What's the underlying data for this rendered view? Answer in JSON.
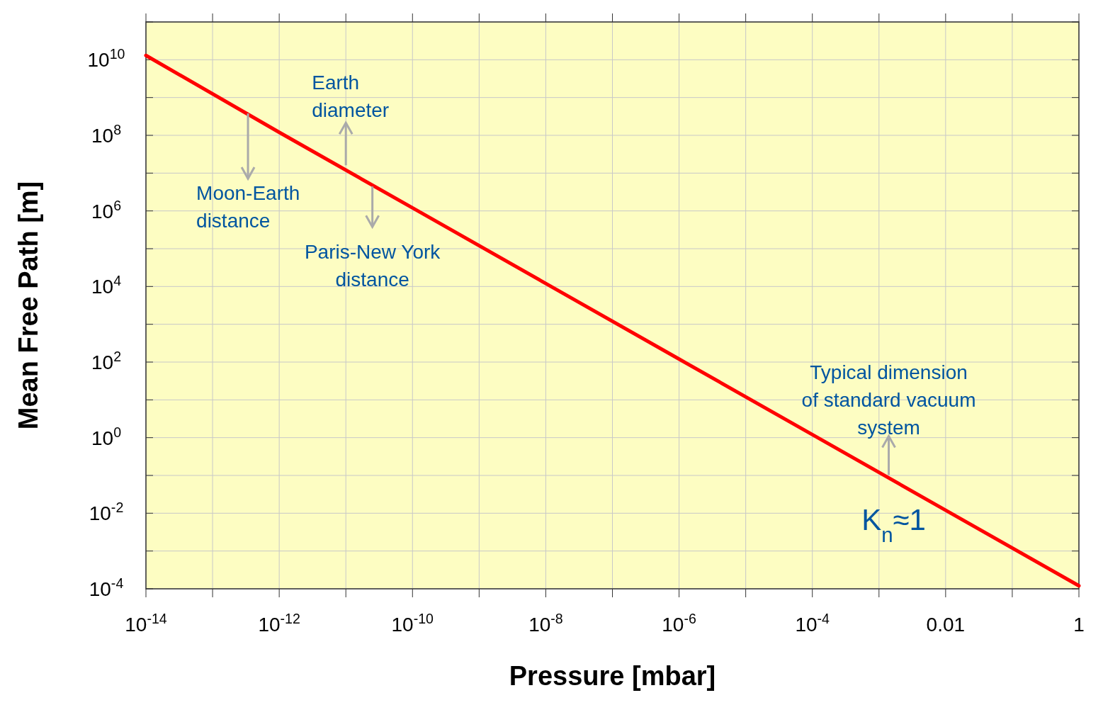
{
  "chart_data": {
    "type": "line",
    "xlabel": "Pressure [mbar]",
    "ylabel": "Mean Free Path [m]",
    "log": "xy",
    "grid": true,
    "line_style": "solid",
    "marker": "none",
    "x": [
      1e-14,
      1e-12,
      1e-10,
      1e-08,
      1e-06,
      0.0001,
      0.01,
      1
    ],
    "series": [
      {
        "color": "#ff0000",
        "values": [
          13000000000.0,
          120000000.0,
          1200000.0,
          12000.0,
          120,
          1.2,
          0.012,
          0.00012
        ]
      }
    ],
    "xlim": [
      1e-14,
      1
    ],
    "ylim": [
      0.0001,
      100000000000.0
    ],
    "xticks": [
      {
        "value": 1e-14,
        "label": "10$^{-14}$"
      },
      {
        "value": 1e-13,
        "label": null
      },
      {
        "value": 1e-12,
        "label": "10$^{-12}$"
      },
      {
        "value": 1e-11,
        "label": null
      },
      {
        "value": 1e-10,
        "label": "10$^{-10}$"
      },
      {
        "value": 1e-09,
        "label": null
      },
      {
        "value": 1e-08,
        "label": "10$^{-8}$"
      },
      {
        "value": 1e-07,
        "label": null
      },
      {
        "value": 1e-06,
        "label": "10$^{-6}$"
      },
      {
        "value": 1e-05,
        "label": null
      },
      {
        "value": 0.0001,
        "label": "10$^{-4}$"
      },
      {
        "value": 0.001,
        "label": null
      },
      {
        "value": 0.01,
        "label": "0.01"
      },
      {
        "value": 0.1,
        "label": null
      },
      {
        "value": 1,
        "label": "1"
      }
    ],
    "yticks": [
      {
        "value": 0.0001,
        "label": "10$^{-4}$"
      },
      {
        "value": 0.001,
        "label": null
      },
      {
        "value": 0.01,
        "label": "10$^{-2}$"
      },
      {
        "value": 0.1,
        "label": null
      },
      {
        "value": 1,
        "label": "10$^{0}$"
      },
      {
        "value": 10,
        "label": null
      },
      {
        "value": 100,
        "label": "10$^{2}$"
      },
      {
        "value": 1000,
        "label": null
      },
      {
        "value": 10000.0,
        "label": "10$^{4}$"
      },
      {
        "value": 100000.0,
        "label": null
      },
      {
        "value": 1000000.0,
        "label": "10$^{6}$"
      },
      {
        "value": 10000000.0,
        "label": null
      },
      {
        "value": 100000000.0,
        "label": "10$^{8}$"
      },
      {
        "value": 1000000000.0,
        "label": null
      },
      {
        "value": 10000000000.0,
        "label": "10$^{10}$"
      },
      {
        "value": 100000000000.0,
        "label": null
      }
    ],
    "annotations": [
      {
        "text": "Moon-Earth\ndistance",
        "x": 3.4e-13,
        "y": 380000000.0
      },
      {
        "text": "Earth\ndiameter",
        "x": 1e-11,
        "y": 13000000.0
      },
      {
        "text": "Paris-New York\ndistance",
        "x": 2.5e-11,
        "y": 5500000.0
      },
      {
        "text": "Typical dimension\nof standard vacuum\nsystem",
        "x": 0.0014,
        "y": 0.09
      },
      {
        "text": "K$_{n}$≈1",
        "x": 0.0014,
        "y": 0.09
      }
    ]
  }
}
